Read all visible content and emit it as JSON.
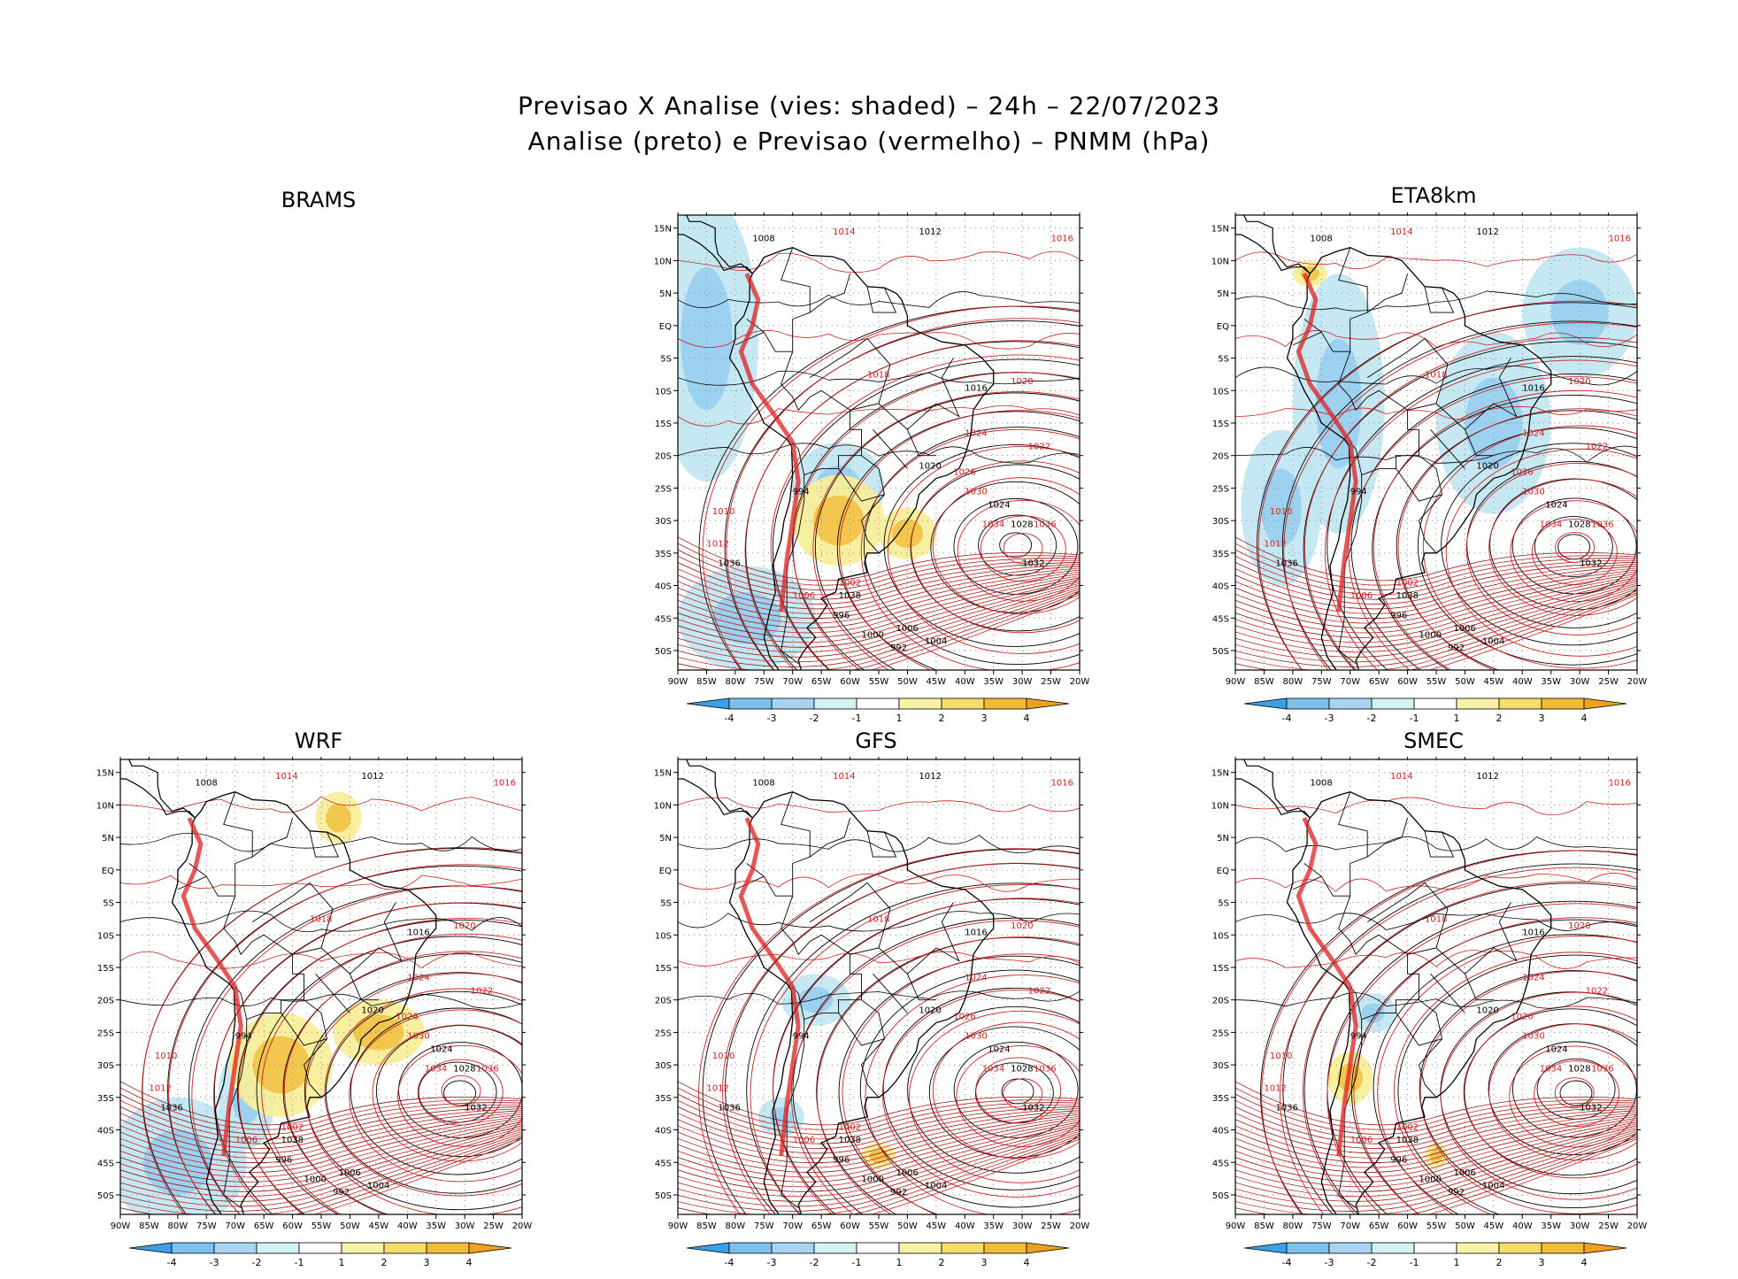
{
  "title": {
    "line1": "Previsao X Analise (vies: shaded) – 24h – 22/07/2023",
    "line2": "Analise (preto) e Previsao (vermelho) – PNMM (hPa)"
  },
  "panels": [
    {
      "id": "brams",
      "label": "BRAMS"
    },
    {
      "id": "eta",
      "label": "ETA8km"
    },
    {
      "id": "wrf",
      "label": "WRF"
    },
    {
      "id": "gfs",
      "label": "GFS"
    },
    {
      "id": "smec",
      "label": "SMEC"
    }
  ],
  "axes": {
    "lon_labels": [
      "90W",
      "85W",
      "80W",
      "75W",
      "70W",
      "65W",
      "60W",
      "55W",
      "50W",
      "45W",
      "40W",
      "35W",
      "30W",
      "25W",
      "20W"
    ],
    "lat_labels": [
      "15N",
      "10N",
      "5N",
      "EQ",
      "5S",
      "10S",
      "15S",
      "20S",
      "25S",
      "30S",
      "35S",
      "40S",
      "45S",
      "50S"
    ]
  },
  "colorbar": {
    "labels": [
      "-4",
      "-3",
      "-2",
      "-1",
      "1",
      "2",
      "3",
      "4"
    ],
    "colors": [
      "#3ca0e6",
      "#7cc0ee",
      "#a8d4f2",
      "#d2f2f4",
      "#ffffff",
      "#f8f2a8",
      "#f6dc6a",
      "#f0bc38",
      "#eea020"
    ]
  },
  "colors": {
    "analysis": "#000000",
    "forecast": "#cc2222"
  },
  "isobar_labels": {
    "analysis": [
      "1008",
      "1012",
      "1016",
      "1020",
      "1024",
      "1028",
      "1032",
      "1036",
      "1038",
      "1006",
      "1004",
      "1000",
      "996",
      "992",
      "994"
    ],
    "forecast": [
      "1014",
      "1016",
      "1018",
      "1020",
      "1022",
      "1024",
      "1026",
      "1030",
      "1034",
      "1036",
      "1012",
      "1010",
      "1006",
      "1002"
    ]
  }
}
